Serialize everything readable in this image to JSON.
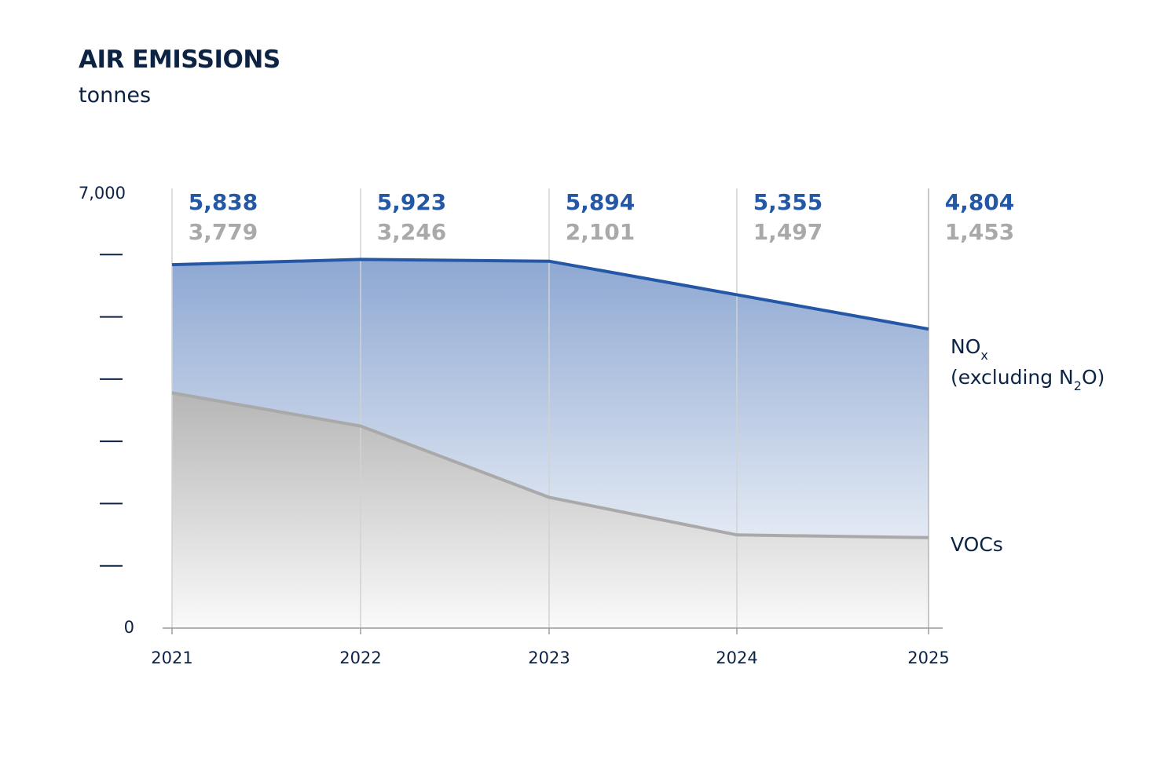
{
  "chart_data": {
    "type": "area",
    "title": "AIR EMISSIONS",
    "subtitle": "tonnes",
    "x": [
      "2021",
      "2022",
      "2023",
      "2024",
      "2025"
    ],
    "ylim": [
      0,
      7000
    ],
    "y_tick_labels": {
      "top": "7,000",
      "bottom": "0"
    },
    "y_minor_ticks": [
      1000,
      2000,
      3000,
      4000,
      5000,
      6000
    ],
    "series": [
      {
        "name": "NOx (excluding N2O)",
        "label_main": "NO",
        "label_sub": "x",
        "label_line2_pre": "(excluding N",
        "label_line2_sub": "2",
        "label_line2_post": "O)",
        "color": "#2458a6",
        "values": [
          5838,
          5923,
          5894,
          5355,
          4804
        ],
        "value_labels": [
          "5,838",
          "5,923",
          "5,894",
          "5,355",
          "4,804"
        ]
      },
      {
        "name": "VOCs",
        "label_main": "VOCs",
        "color": "#a9a9a9",
        "values": [
          3779,
          3246,
          2101,
          1497,
          1453
        ],
        "value_labels": [
          "3,779",
          "3,246",
          "2,101",
          "1,497",
          "1,453"
        ]
      }
    ]
  }
}
